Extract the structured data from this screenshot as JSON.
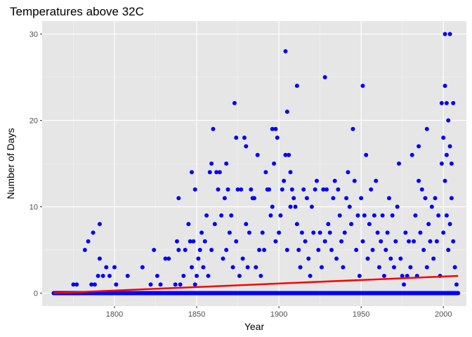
{
  "chart_data": {
    "type": "scatter",
    "title": "Temperatures above 32C",
    "xlabel": "Year",
    "ylabel": "Number of Days",
    "xlim": [
      1756,
      2014
    ],
    "ylim": [
      -1.5,
      31.5
    ],
    "x_ticks": [
      1800,
      1850,
      1900,
      1950,
      2000
    ],
    "y_ticks": [
      0,
      10,
      20,
      30
    ],
    "grid": true,
    "background": "#e6e6e6",
    "point_color": "#0000ff",
    "trend_color": "#ff0000",
    "baseline": {
      "from": 1763,
      "to": 2009,
      "value": 0
    },
    "trend": {
      "x": [
        1763,
        2009
      ],
      "y": [
        0,
        2.0
      ]
    },
    "points": [
      [
        1775,
        1
      ],
      [
        1777,
        1
      ],
      [
        1782,
        5
      ],
      [
        1784,
        6
      ],
      [
        1786,
        1
      ],
      [
        1787,
        7
      ],
      [
        1788,
        1
      ],
      [
        1790,
        2
      ],
      [
        1791,
        8
      ],
      [
        1791,
        4
      ],
      [
        1793,
        2
      ],
      [
        1795,
        3
      ],
      [
        1797,
        2
      ],
      [
        1800,
        3
      ],
      [
        1801,
        1
      ],
      [
        1808,
        2
      ],
      [
        1817,
        3
      ],
      [
        1822,
        1
      ],
      [
        1824,
        5
      ],
      [
        1826,
        2
      ],
      [
        1828,
        1
      ],
      [
        1831,
        4
      ],
      [
        1833,
        4
      ],
      [
        1837,
        1
      ],
      [
        1838,
        6
      ],
      [
        1839,
        11
      ],
      [
        1839,
        5
      ],
      [
        1840,
        1
      ],
      [
        1842,
        2
      ],
      [
        1843,
        5
      ],
      [
        1845,
        8
      ],
      [
        1846,
        6
      ],
      [
        1847,
        14
      ],
      [
        1847,
        3
      ],
      [
        1848,
        6
      ],
      [
        1849,
        12
      ],
      [
        1849,
        1
      ],
      [
        1850,
        2
      ],
      [
        1851,
        4
      ],
      [
        1852,
        5
      ],
      [
        1853,
        7
      ],
      [
        1854,
        3
      ],
      [
        1855,
        6
      ],
      [
        1856,
        9
      ],
      [
        1857,
        2
      ],
      [
        1858,
        14
      ],
      [
        1859,
        15
      ],
      [
        1859,
        5
      ],
      [
        1860,
        19
      ],
      [
        1861,
        8
      ],
      [
        1862,
        14
      ],
      [
        1863,
        12
      ],
      [
        1864,
        14
      ],
      [
        1865,
        9
      ],
      [
        1866,
        4
      ],
      [
        1867,
        11
      ],
      [
        1868,
        15
      ],
      [
        1868,
        5
      ],
      [
        1869,
        12
      ],
      [
        1870,
        7
      ],
      [
        1871,
        9
      ],
      [
        1872,
        3
      ],
      [
        1873,
        22
      ],
      [
        1874,
        18
      ],
      [
        1874,
        6
      ],
      [
        1875,
        12
      ],
      [
        1876,
        2
      ],
      [
        1877,
        12
      ],
      [
        1878,
        4
      ],
      [
        1879,
        18
      ],
      [
        1880,
        17
      ],
      [
        1880,
        8
      ],
      [
        1881,
        3
      ],
      [
        1882,
        7
      ],
      [
        1883,
        12
      ],
      [
        1884,
        11
      ],
      [
        1885,
        11
      ],
      [
        1886,
        3
      ],
      [
        1887,
        16
      ],
      [
        1888,
        5
      ],
      [
        1889,
        2
      ],
      [
        1890,
        7
      ],
      [
        1891,
        5
      ],
      [
        1892,
        14
      ],
      [
        1893,
        12
      ],
      [
        1894,
        12
      ],
      [
        1895,
        9
      ],
      [
        1896,
        19
      ],
      [
        1896,
        10
      ],
      [
        1897,
        15
      ],
      [
        1898,
        19
      ],
      [
        1898,
        6
      ],
      [
        1899,
        18
      ],
      [
        1900,
        7
      ],
      [
        1901,
        9
      ],
      [
        1902,
        12
      ],
      [
        1903,
        13
      ],
      [
        1904,
        28
      ],
      [
        1904,
        16
      ],
      [
        1905,
        21
      ],
      [
        1905,
        5
      ],
      [
        1906,
        16
      ],
      [
        1907,
        14
      ],
      [
        1907,
        10
      ],
      [
        1908,
        12
      ],
      [
        1909,
        11
      ],
      [
        1910,
        10
      ],
      [
        1911,
        24
      ],
      [
        1911,
        8
      ],
      [
        1912,
        5
      ],
      [
        1913,
        3
      ],
      [
        1914,
        7
      ],
      [
        1915,
        12
      ],
      [
        1916,
        6
      ],
      [
        1917,
        11
      ],
      [
        1918,
        4
      ],
      [
        1919,
        2
      ],
      [
        1920,
        10
      ],
      [
        1921,
        7
      ],
      [
        1922,
        12
      ],
      [
        1923,
        13
      ],
      [
        1924,
        5
      ],
      [
        1925,
        7
      ],
      [
        1926,
        3
      ],
      [
        1927,
        12
      ],
      [
        1928,
        25
      ],
      [
        1928,
        6
      ],
      [
        1929,
        12
      ],
      [
        1930,
        8
      ],
      [
        1931,
        7
      ],
      [
        1932,
        5
      ],
      [
        1933,
        11
      ],
      [
        1934,
        13
      ],
      [
        1935,
        4
      ],
      [
        1936,
        12
      ],
      [
        1937,
        9
      ],
      [
        1938,
        6
      ],
      [
        1939,
        3
      ],
      [
        1940,
        7
      ],
      [
        1941,
        11
      ],
      [
        1942,
        14
      ],
      [
        1943,
        10
      ],
      [
        1944,
        8
      ],
      [
        1945,
        19
      ],
      [
        1946,
        13
      ],
      [
        1947,
        5
      ],
      [
        1948,
        9
      ],
      [
        1949,
        2
      ],
      [
        1950,
        11
      ],
      [
        1951,
        24
      ],
      [
        1951,
        6
      ],
      [
        1952,
        9
      ],
      [
        1953,
        16
      ],
      [
        1954,
        4
      ],
      [
        1955,
        8
      ],
      [
        1956,
        12
      ],
      [
        1957,
        5
      ],
      [
        1958,
        9
      ],
      [
        1959,
        13
      ],
      [
        1960,
        7
      ],
      [
        1961,
        3
      ],
      [
        1962,
        6
      ],
      [
        1963,
        9
      ],
      [
        1964,
        2
      ],
      [
        1965,
        5
      ],
      [
        1966,
        7
      ],
      [
        1967,
        11
      ],
      [
        1968,
        4
      ],
      [
        1969,
        9
      ],
      [
        1970,
        3
      ],
      [
        1971,
        6
      ],
      [
        1972,
        10
      ],
      [
        1973,
        15
      ],
      [
        1974,
        4
      ],
      [
        1975,
        2
      ],
      [
        1976,
        1
      ],
      [
        1977,
        7
      ],
      [
        1978,
        2
      ],
      [
        1979,
        6
      ],
      [
        1980,
        3
      ],
      [
        1981,
        16
      ],
      [
        1982,
        6
      ],
      [
        1983,
        9
      ],
      [
        1984,
        2
      ],
      [
        1985,
        17
      ],
      [
        1985,
        13
      ],
      [
        1986,
        7
      ],
      [
        1987,
        12
      ],
      [
        1988,
        5
      ],
      [
        1989,
        11
      ],
      [
        1990,
        19
      ],
      [
        1990,
        3
      ],
      [
        1991,
        8
      ],
      [
        1992,
        6
      ],
      [
        1993,
        10
      ],
      [
        1994,
        4
      ],
      [
        1995,
        11
      ],
      [
        1996,
        6
      ],
      [
        1997,
        9
      ],
      [
        1998,
        2
      ],
      [
        1999,
        22
      ],
      [
        1999,
        15
      ],
      [
        2000,
        18
      ],
      [
        2000,
        7
      ],
      [
        2001,
        30
      ],
      [
        2001,
        24
      ],
      [
        2001,
        13
      ],
      [
        2002,
        22
      ],
      [
        2002,
        16
      ],
      [
        2002,
        9
      ],
      [
        2003,
        20
      ],
      [
        2003,
        5
      ],
      [
        2004,
        30
      ],
      [
        2004,
        17
      ],
      [
        2004,
        8
      ],
      [
        2005,
        15
      ],
      [
        2005,
        11
      ],
      [
        2006,
        22
      ],
      [
        2006,
        6
      ],
      [
        2007,
        3
      ],
      [
        2008,
        1
      ]
    ]
  }
}
